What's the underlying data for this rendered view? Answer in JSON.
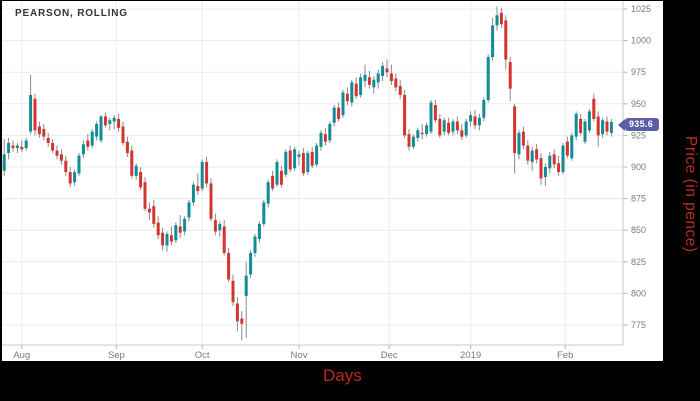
{
  "header": {
    "title": "PEARSON, ROLLING"
  },
  "current_price": {
    "value": "935.6",
    "badge_color": "#5b5da7"
  },
  "colors": {
    "up": "#118c94",
    "down": "#d4342f",
    "wick": "#8a8a8a",
    "grid": "#ececec",
    "axis_line": "#c8c8c8",
    "tick": "#b5b5b5",
    "label": "#7a7a7a",
    "title": "#33353b",
    "accent_red": "#bc2b21",
    "frame": "#000000",
    "background": "#ffffff",
    "badge": "#5b5da7"
  },
  "chart_data": {
    "type": "candlestick",
    "title": "PEARSON, ROLLING",
    "xlabel": "Days",
    "ylabel": "Price (in pence)",
    "ylim": [
      763,
      1028
    ],
    "grid": true,
    "y_ticks": [
      1025,
      1000,
      975,
      950,
      925,
      900,
      875,
      850,
      825,
      800,
      775
    ],
    "x_ticks": [
      {
        "label": "Aug",
        "index": 4
      },
      {
        "label": "Sep",
        "index": 25.5
      },
      {
        "label": "Oct",
        "index": 45
      },
      {
        "label": "Nov",
        "index": 67
      },
      {
        "label": "Dec",
        "index": 87.5
      },
      {
        "label": "2019",
        "index": 106
      },
      {
        "label": "Feb",
        "index": 127.5
      }
    ],
    "last_close": 935.6,
    "candles": [
      [
        897,
        922,
        893,
        910
      ],
      [
        911,
        923,
        906,
        919
      ],
      [
        917,
        921,
        912,
        915
      ],
      [
        915,
        919,
        911,
        917
      ],
      [
        916,
        921,
        912,
        914
      ],
      [
        915,
        923,
        913,
        921
      ],
      [
        928,
        973,
        926,
        957
      ],
      [
        954,
        958,
        925,
        929
      ],
      [
        932,
        936,
        923,
        926
      ],
      [
        930,
        934,
        921,
        924
      ],
      [
        923,
        927,
        916,
        919
      ],
      [
        919,
        922,
        911,
        913
      ],
      [
        913,
        917,
        906,
        909
      ],
      [
        910,
        914,
        902,
        905
      ],
      [
        905,
        909,
        893,
        896
      ],
      [
        896,
        900,
        884,
        887
      ],
      [
        888,
        898,
        885,
        896
      ],
      [
        895,
        911,
        893,
        909
      ],
      [
        910,
        921,
        907,
        918
      ],
      [
        921,
        926,
        913,
        916
      ],
      [
        917,
        930,
        915,
        928
      ],
      [
        924,
        936,
        921,
        934
      ],
      [
        921,
        941,
        919,
        940
      ],
      [
        940,
        943,
        931,
        933
      ],
      [
        934,
        939,
        929,
        937
      ],
      [
        936,
        941,
        930,
        939
      ],
      [
        938,
        942,
        928,
        931
      ],
      [
        932,
        936,
        917,
        919
      ],
      [
        920,
        924,
        908,
        911
      ],
      [
        913,
        917,
        891,
        893
      ],
      [
        893,
        903,
        890,
        901
      ],
      [
        896,
        900,
        882,
        884
      ],
      [
        888,
        892,
        865,
        867
      ],
      [
        867,
        872,
        858,
        864
      ],
      [
        869,
        874,
        852,
        855
      ],
      [
        856,
        861,
        843,
        846
      ],
      [
        848,
        852,
        834,
        838
      ],
      [
        838,
        849,
        833,
        847
      ],
      [
        846,
        853,
        838,
        841
      ],
      [
        842,
        856,
        840,
        854
      ],
      [
        853,
        862,
        844,
        848
      ],
      [
        849,
        861,
        846,
        859
      ],
      [
        860,
        874,
        857,
        872
      ],
      [
        872,
        888,
        869,
        886
      ],
      [
        885,
        895,
        878,
        881
      ],
      [
        883,
        906,
        881,
        904
      ],
      [
        904,
        908,
        884,
        887
      ],
      [
        887,
        891,
        857,
        859
      ],
      [
        858,
        863,
        846,
        849
      ],
      [
        850,
        857,
        845,
        855
      ],
      [
        853,
        858,
        830,
        832
      ],
      [
        832,
        836,
        809,
        811
      ],
      [
        810,
        815,
        790,
        793
      ],
      [
        792,
        797,
        770,
        778
      ],
      [
        780,
        786,
        763,
        776
      ],
      [
        798,
        825,
        765,
        814
      ],
      [
        815,
        834,
        812,
        832
      ],
      [
        832,
        847,
        829,
        845
      ],
      [
        843,
        857,
        840,
        855
      ],
      [
        855,
        874,
        853,
        872
      ],
      [
        871,
        890,
        868,
        888
      ],
      [
        893,
        897,
        881,
        883
      ],
      [
        886,
        906,
        884,
        904
      ],
      [
        897,
        901,
        884,
        886
      ],
      [
        894,
        914,
        892,
        912
      ],
      [
        913,
        917,
        896,
        898
      ],
      [
        899,
        916,
        897,
        914
      ],
      [
        908,
        913,
        901,
        910
      ],
      [
        911,
        915,
        893,
        895
      ],
      [
        896,
        913,
        894,
        911
      ],
      [
        912,
        916,
        899,
        901
      ],
      [
        902,
        919,
        900,
        917
      ],
      [
        916,
        929,
        913,
        927
      ],
      [
        926,
        931,
        917,
        920
      ],
      [
        921,
        936,
        919,
        934
      ],
      [
        935,
        949,
        932,
        947
      ],
      [
        947,
        951,
        936,
        938
      ],
      [
        941,
        961,
        939,
        959
      ],
      [
        958,
        963,
        949,
        952
      ],
      [
        951,
        969,
        948,
        967
      ],
      [
        966,
        971,
        954,
        956
      ],
      [
        957,
        974,
        955,
        971
      ],
      [
        968,
        981,
        963,
        973
      ],
      [
        971,
        976,
        962,
        965
      ],
      [
        963,
        972,
        958,
        969
      ],
      [
        967,
        977,
        962,
        974
      ],
      [
        972,
        983,
        968,
        980
      ],
      [
        978,
        985,
        971,
        975
      ],
      [
        974,
        981,
        965,
        968
      ],
      [
        970,
        974,
        960,
        963
      ],
      [
        964,
        969,
        954,
        957
      ],
      [
        957,
        961,
        923,
        925
      ],
      [
        926,
        930,
        913,
        916
      ],
      [
        916,
        926,
        914,
        924
      ],
      [
        923,
        931,
        920,
        929
      ],
      [
        927,
        934,
        922,
        926
      ],
      [
        926,
        935,
        924,
        933
      ],
      [
        928,
        953,
        926,
        951
      ],
      [
        949,
        953,
        935,
        937
      ],
      [
        938,
        942,
        923,
        925
      ],
      [
        928,
        939,
        925,
        937
      ],
      [
        935,
        939,
        925,
        927
      ],
      [
        928,
        938,
        925,
        936
      ],
      [
        936,
        940,
        926,
        929
      ],
      [
        929,
        934,
        921,
        924
      ],
      [
        925,
        938,
        923,
        936
      ],
      [
        936,
        944,
        932,
        941
      ],
      [
        940,
        945,
        930,
        933
      ],
      [
        933,
        942,
        929,
        939
      ],
      [
        939,
        955,
        936,
        953
      ],
      [
        953,
        989,
        951,
        987
      ],
      [
        987,
        1018,
        984,
        1012
      ],
      [
        1012,
        1027,
        1008,
        1020
      ],
      [
        1022,
        1026,
        1010,
        1013
      ],
      [
        1016,
        1020,
        977,
        985
      ],
      [
        983,
        987,
        952,
        962
      ],
      [
        948,
        950,
        895,
        911
      ],
      [
        910,
        929,
        906,
        927
      ],
      [
        928,
        932,
        914,
        917
      ],
      [
        917,
        921,
        902,
        905
      ],
      [
        904,
        916,
        897,
        913
      ],
      [
        914,
        918,
        903,
        906
      ],
      [
        907,
        911,
        886,
        891
      ],
      [
        892,
        903,
        885,
        900
      ],
      [
        899,
        912,
        895,
        909
      ],
      [
        910,
        914,
        899,
        902
      ],
      [
        903,
        909,
        893,
        896
      ],
      [
        896,
        919,
        894,
        917
      ],
      [
        920,
        924,
        907,
        909
      ],
      [
        907,
        927,
        905,
        925
      ],
      [
        924,
        944,
        921,
        942
      ],
      [
        938,
        942,
        925,
        927
      ],
      [
        920,
        938,
        918,
        936
      ],
      [
        929,
        946,
        927,
        944
      ],
      [
        954,
        958,
        936,
        938
      ],
      [
        940,
        944,
        916,
        925
      ],
      [
        926,
        939,
        923,
        937
      ],
      [
        936,
        940,
        925,
        928
      ],
      [
        927,
        938,
        924,
        935.6
      ]
    ]
  }
}
